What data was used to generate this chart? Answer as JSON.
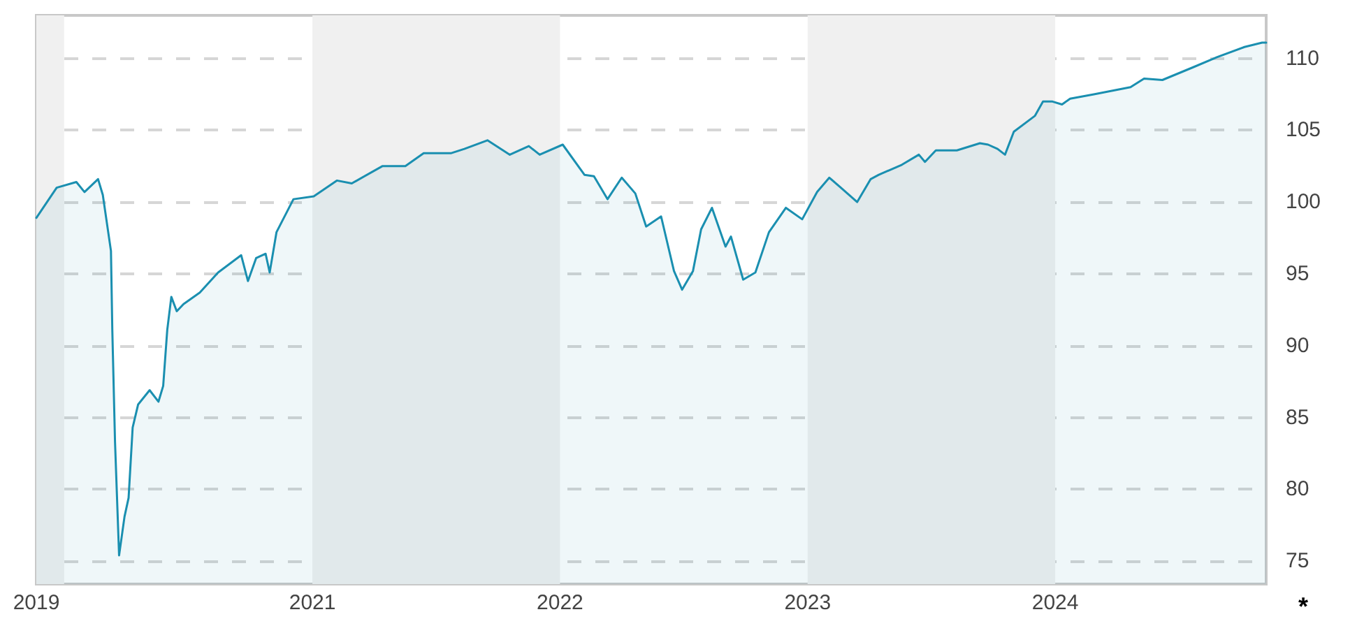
{
  "chart_data": {
    "type": "area",
    "x": [
      "2019-11-21",
      "2019-12-21",
      "2020-01-19",
      "2020-01-31",
      "2020-02-20",
      "2020-02-27",
      "2020-03-10",
      "2020-03-12",
      "2020-03-16",
      "2020-03-22",
      "2020-03-30",
      "2020-04-05",
      "2020-04-11",
      "2020-04-19",
      "2020-05-06",
      "2020-05-19",
      "2020-05-26",
      "2020-06-01",
      "2020-06-07",
      "2020-06-15",
      "2020-06-25",
      "2020-07-19",
      "2020-08-15",
      "2020-09-18",
      "2020-09-28",
      "2020-10-10",
      "2020-10-24",
      "2020-10-30",
      "2020-11-09",
      "2020-12-04",
      "2021-01-03",
      "2021-02-06",
      "2021-02-28",
      "2021-04-14",
      "2021-05-18",
      "2021-06-14",
      "2021-07-24",
      "2021-08-13",
      "2021-09-16",
      "2021-10-19",
      "2021-11-16",
      "2021-12-02",
      "2022-01-05",
      "2022-02-06",
      "2022-02-20",
      "2022-03-12",
      "2022-04-02",
      "2022-04-22",
      "2022-05-08",
      "2022-05-30",
      "2022-06-18",
      "2022-06-30",
      "2022-07-16",
      "2022-07-28",
      "2022-08-13",
      "2022-09-02",
      "2022-09-10",
      "2022-09-28",
      "2022-10-16",
      "2022-11-05",
      "2022-11-30",
      "2022-12-24",
      "2023-01-15",
      "2023-02-02",
      "2023-02-19",
      "2023-03-15",
      "2023-04-04",
      "2023-04-16",
      "2023-05-20",
      "2023-06-14",
      "2023-06-23",
      "2023-07-09",
      "2023-08-09",
      "2023-09-12",
      "2023-09-24",
      "2023-10-08",
      "2023-10-19",
      "2023-11-01",
      "2023-12-02",
      "2023-12-14",
      "2023-12-28",
      "2024-01-11",
      "2024-01-23",
      "2024-02-27",
      "2024-04-21",
      "2024-05-11",
      "2024-06-07",
      "2024-07-23",
      "2024-08-27",
      "2024-10-06",
      "2024-11-01",
      "2024-11-07"
    ],
    "series": [
      {
        "color": "#1a8fb0",
        "values": [
          98.9,
          101.0,
          101.4,
          100.7,
          101.6,
          100.5,
          96.6,
          91.1,
          83.3,
          75.4,
          78.1,
          79.4,
          84.3,
          85.9,
          86.9,
          86.1,
          87.2,
          91.1,
          93.4,
          92.4,
          92.9,
          93.7,
          95.1,
          96.3,
          94.5,
          96.1,
          96.4,
          95.1,
          97.9,
          100.2,
          100.4,
          101.5,
          101.3,
          102.5,
          102.5,
          103.4,
          103.4,
          103.7,
          104.3,
          103.3,
          103.9,
          103.3,
          104.0,
          101.9,
          101.8,
          100.2,
          101.7,
          100.6,
          98.3,
          99.0,
          95.2,
          93.9,
          95.2,
          98.1,
          99.6,
          96.9,
          97.6,
          94.6,
          95.1,
          97.9,
          99.6,
          98.8,
          100.7,
          101.7,
          101.0,
          100.0,
          101.6,
          101.9,
          102.6,
          103.3,
          102.8,
          103.6,
          103.6,
          104.1,
          104.0,
          103.7,
          103.3,
          104.9,
          106.0,
          107.0,
          107.0,
          106.8,
          107.2,
          107.5,
          108.0,
          108.6,
          108.5,
          109.4,
          110.1,
          110.8,
          111.1,
          111.1
        ]
      }
    ],
    "xlim": [
      "2019-11-21",
      "2024-11-07"
    ],
    "xticks": [
      {
        "value": "2019-11-21",
        "label": "2019"
      },
      "2021",
      "2022",
      "2023",
      "2024"
    ],
    "ylim": [
      73.4,
      113
    ],
    "yticks": [
      75,
      80,
      85,
      90,
      95,
      100,
      105,
      110
    ],
    "bands": [
      {
        "axis": "x",
        "from": "2019-11-21",
        "to": "2020-01-01",
        "color": "#f0f0f0"
      },
      {
        "axis": "x",
        "from": "2021-01-01",
        "to": "2022-01-01",
        "color": "#f0f0f0"
      },
      {
        "axis": "x",
        "from": "2023-01-01",
        "to": "2024-01-01",
        "color": "#f0f0f0"
      }
    ],
    "grid": "y",
    "marker": "none",
    "line_style": "solid",
    "annotations": [
      "*"
    ]
  }
}
